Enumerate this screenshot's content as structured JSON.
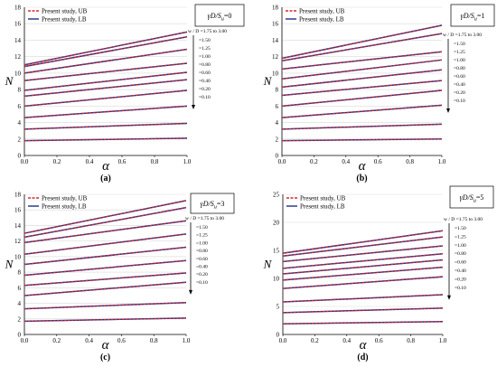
{
  "figure": {
    "legend_ub": "Present study, UB",
    "legend_lb": "Present study, LB",
    "colors": {
      "ub": "#e0242b",
      "lb": "#1f2f86",
      "axis": "#000000",
      "grid": "#d9d9d9"
    }
  },
  "chart_data": [
    {
      "type": "line",
      "panel_label": "(a)",
      "ratio_label": "γD/Su=0",
      "ratio_label_main": "γD/S",
      "ratio_label_sub": "u",
      "ratio_label_value": "=0",
      "xlabel": "α",
      "ylabel": "N",
      "xlim": [
        0,
        1
      ],
      "ylim": [
        0,
        18
      ],
      "xticks": [
        "0.0",
        "0.2",
        "0.4",
        "0.6",
        "0.8",
        "1.0"
      ],
      "yticks": [
        "0",
        "2",
        "4",
        "6",
        "8",
        "10",
        "12",
        "14",
        "16",
        "18"
      ],
      "grid": true,
      "legend": "top-left",
      "annotation_header": "w / D =1.75 to 3.00",
      "annotation_values": [
        "=1.50",
        "=1.25",
        "=1.00",
        "=0.80",
        "=0.60",
        "=0.40",
        "=0.20",
        "=0.10"
      ],
      "x": [
        0,
        1
      ],
      "series": [
        {
          "values": [
            11.0,
            15.0
          ]
        },
        {
          "values": [
            10.8,
            14.4
          ]
        },
        {
          "values": [
            10.0,
            12.9
          ]
        },
        {
          "values": [
            9.1,
            11.2
          ]
        },
        {
          "values": [
            7.9,
            10.1
          ]
        },
        {
          "values": [
            7.2,
            9.2
          ]
        },
        {
          "values": [
            6.0,
            7.9
          ]
        },
        {
          "values": [
            4.6,
            6.0
          ]
        },
        {
          "values": [
            3.2,
            3.9
          ]
        },
        {
          "values": [
            1.8,
            2.1
          ]
        }
      ]
    },
    {
      "type": "line",
      "panel_label": "(b)",
      "ratio_label": "γD/Su=1",
      "ratio_label_main": "γD/S",
      "ratio_label_sub": "u",
      "ratio_label_value": "=1",
      "xlabel": "α",
      "ylabel": "N",
      "xlim": [
        0,
        1
      ],
      "ylim": [
        0,
        18
      ],
      "xticks": [
        "0.0",
        "0.2",
        "0.4",
        "0.6",
        "0.8",
        "1.0"
      ],
      "yticks": [
        "0",
        "2",
        "4",
        "6",
        "8",
        "10",
        "12",
        "14",
        "16",
        "18"
      ],
      "grid": true,
      "legend": "top-left",
      "annotation_header": "w / D =1.75 to 3.00",
      "annotation_values": [
        "=1.50",
        "=1.25",
        "=1.00",
        "=0.80",
        "=0.60",
        "=0.40",
        "=0.20",
        "=0.10"
      ],
      "x": [
        0,
        1
      ],
      "series": [
        {
          "values": [
            11.8,
            15.8
          ]
        },
        {
          "values": [
            11.5,
            14.8
          ]
        },
        {
          "values": [
            10.5,
            12.6
          ]
        },
        {
          "values": [
            9.3,
            11.6
          ]
        },
        {
          "values": [
            8.3,
            10.4
          ]
        },
        {
          "values": [
            7.3,
            9.1
          ]
        },
        {
          "values": [
            6.0,
            7.9
          ]
        },
        {
          "values": [
            4.6,
            6.1
          ]
        },
        {
          "values": [
            3.2,
            3.8
          ]
        },
        {
          "values": [
            1.8,
            2.0
          ]
        }
      ]
    },
    {
      "type": "line",
      "panel_label": "(c)",
      "ratio_label": "γD/Su=3",
      "ratio_label_main": "γD/S",
      "ratio_label_sub": "u",
      "ratio_label_value": "=3",
      "xlabel": "α",
      "ylabel": "N",
      "xlim": [
        0,
        1
      ],
      "ylim": [
        0,
        18
      ],
      "xticks": [
        "0.0",
        "0.2",
        "0.4",
        "0.6",
        "0.8",
        "1.0"
      ],
      "yticks": [
        "0",
        "2",
        "4",
        "6",
        "8",
        "10",
        "12",
        "14",
        "16",
        "18"
      ],
      "grid": true,
      "legend": "top-left",
      "annotation_header": "w / D =1.75 to 3.00",
      "annotation_values": [
        "=1.50",
        "=1.25",
        "=1.00",
        "=0.80",
        "=0.60",
        "=0.40",
        "=0.20",
        "=0.10"
      ],
      "x": [
        0,
        1
      ],
      "series": [
        {
          "values": [
            13.0,
            17.2
          ]
        },
        {
          "values": [
            12.5,
            16.3
          ]
        },
        {
          "values": [
            11.8,
            14.6
          ]
        },
        {
          "values": [
            10.3,
            12.9
          ]
        },
        {
          "values": [
            9.0,
            11.2
          ]
        },
        {
          "values": [
            7.6,
            9.5
          ]
        },
        {
          "values": [
            6.3,
            7.9
          ]
        },
        {
          "values": [
            5.0,
            6.7
          ]
        },
        {
          "values": [
            3.3,
            4.1
          ]
        },
        {
          "values": [
            1.7,
            2.1
          ]
        }
      ]
    },
    {
      "type": "line",
      "panel_label": "(d)",
      "ratio_label": "γD/Su=5",
      "ratio_label_main": "γD/S",
      "ratio_label_sub": "u",
      "ratio_label_value": "=5",
      "xlabel": "α",
      "ylabel": "N",
      "xlim": [
        0,
        1
      ],
      "ylim": [
        0,
        25
      ],
      "xticks": [
        "0.0",
        "0.2",
        "0.4",
        "0.6",
        "0.8",
        "1.0"
      ],
      "yticks": [
        "0",
        "5",
        "10",
        "15",
        "20",
        "25"
      ],
      "grid": true,
      "legend": "top-left",
      "annotation_header": "w / D =1.75 to 3.00",
      "annotation_values": [
        "=1.50",
        "=1.25",
        "=1.00",
        "=0.80",
        "=0.60",
        "=0.40",
        "=0.20",
        "=0.10"
      ],
      "x": [
        0,
        1
      ],
      "series": [
        {
          "values": [
            14.5,
            18.5
          ]
        },
        {
          "values": [
            14.0,
            17.4
          ]
        },
        {
          "values": [
            13.0,
            15.8
          ]
        },
        {
          "values": [
            11.8,
            14.4
          ]
        },
        {
          "values": [
            10.8,
            13.3
          ]
        },
        {
          "values": [
            9.7,
            12.0
          ]
        },
        {
          "values": [
            8.2,
            10.3
          ]
        },
        {
          "values": [
            5.8,
            7.1
          ]
        },
        {
          "values": [
            3.9,
            4.7
          ]
        },
        {
          "values": [
            1.9,
            2.3
          ]
        }
      ]
    }
  ]
}
